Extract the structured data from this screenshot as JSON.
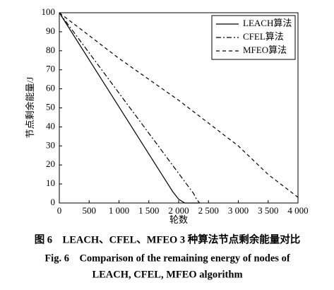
{
  "chart_data": {
    "type": "line",
    "xlabel": "轮数",
    "ylabel": "节点剩余能量/J",
    "xlim": [
      0,
      4000
    ],
    "ylim": [
      0,
      100
    ],
    "xticks": [
      0,
      500,
      {
        "value": 1000,
        "label": "1 000"
      },
      {
        "value": 1500,
        "label": "1 500"
      },
      {
        "value": 2000,
        "label": "2 000"
      },
      {
        "value": 2500,
        "label": "2 500"
      },
      {
        "value": 3000,
        "label": "3 000"
      },
      {
        "value": 3500,
        "label": "3 500"
      },
      {
        "value": 4000,
        "label": "4 000"
      }
    ],
    "yticks": [
      0,
      10,
      20,
      30,
      40,
      50,
      60,
      70,
      80,
      90,
      100
    ],
    "legend": "upper right",
    "series": [
      {
        "name": "LEACH算法",
        "color": "#000000",
        "dash": "solid",
        "x": [
          0,
          1900,
          2000,
          2100,
          2350
        ],
        "values": [
          100,
          6,
          2,
          0,
          0
        ]
      },
      {
        "name": "CFEL算法",
        "color": "#000000",
        "dash": "dashdot",
        "x": [
          0,
          2250,
          2300,
          2350
        ],
        "values": [
          100,
          5,
          2,
          0
        ]
      },
      {
        "name": "MFEO算法",
        "color": "#000000",
        "dash": "dashed",
        "x": [
          0,
          500,
          1000,
          1500,
          2000,
          2500,
          3000,
          3500,
          4000
        ],
        "values": [
          100,
          88,
          76,
          65,
          54,
          42,
          30,
          15,
          3
        ]
      }
    ]
  },
  "caption": {
    "cn": "图 6　LEACH、CFEL、MFEO 3 种算法节点剩余能量对比",
    "en1": "Fig. 6　Comparison of the remaining energy of nodes of",
    "en2": "LEACH, CFEL, MFEO algorithm"
  }
}
